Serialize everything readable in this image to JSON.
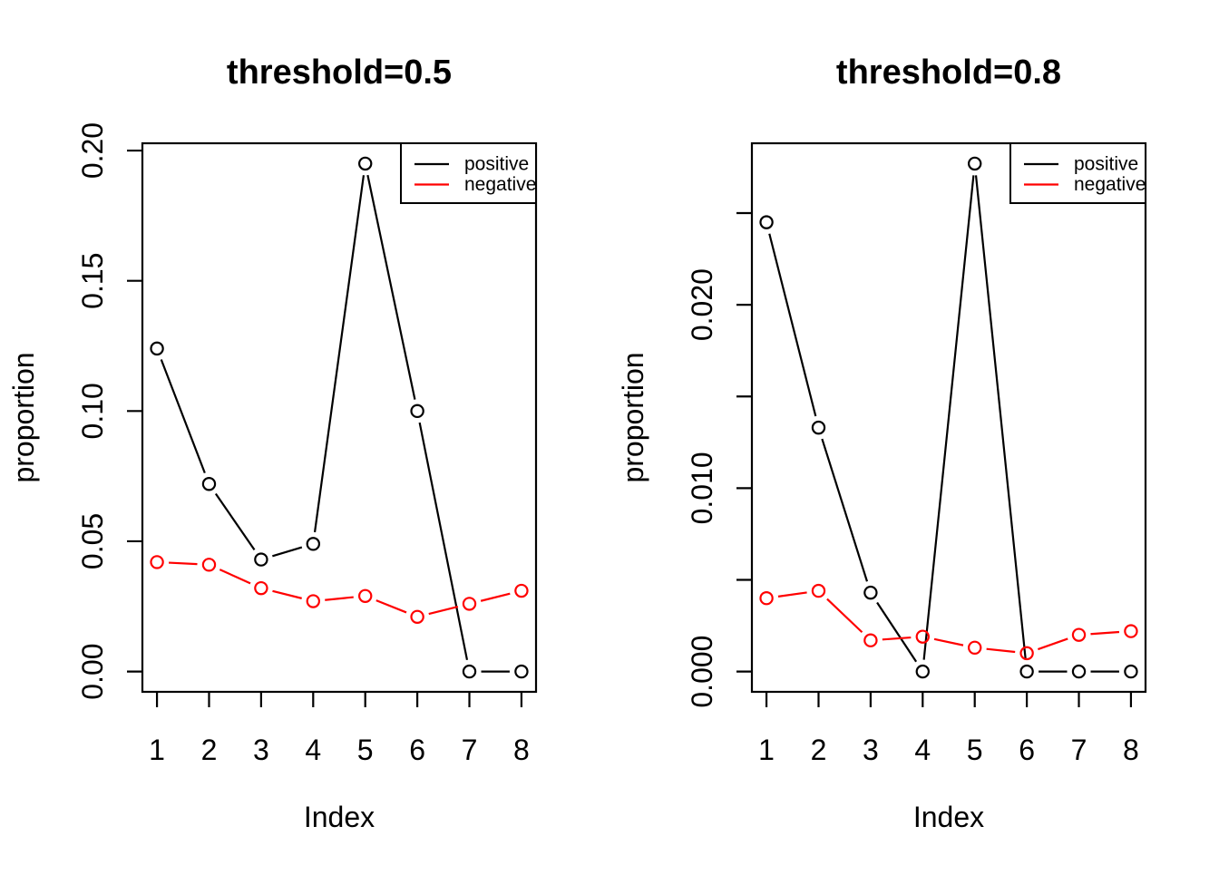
{
  "figure": {
    "background": "#FFFFFF",
    "description": "two-panel line chart"
  },
  "chart_data": {
    "type": "line",
    "marker": "open-circle",
    "line_style": "points-with-gapped-segments",
    "panels": [
      {
        "title": "threshold=0.5",
        "xlabel": "Index",
        "ylabel": "proportion",
        "x": [
          1,
          2,
          3,
          4,
          5,
          6,
          7,
          8
        ],
        "xlim": [
          1,
          8
        ],
        "ylim": [
          0,
          0.195
        ],
        "xtick_labels": [
          "1",
          "2",
          "3",
          "4",
          "5",
          "6",
          "7",
          "8"
        ],
        "yticks": [
          {
            "v": 0.0,
            "label": "0.00"
          },
          {
            "v": 0.05,
            "label": "0.05"
          },
          {
            "v": 0.1,
            "label": "0.10"
          },
          {
            "v": 0.15,
            "label": "0.15"
          },
          {
            "v": 0.2,
            "label": "0.20"
          }
        ],
        "series": [
          {
            "name": "positive",
            "color": "#000000",
            "values": [
              0.124,
              0.072,
              0.043,
              0.049,
              0.195,
              0.1,
              0.0,
              0.0
            ]
          },
          {
            "name": "negative",
            "color": "#FF0000",
            "values": [
              0.042,
              0.041,
              0.032,
              0.027,
              0.029,
              0.021,
              0.026,
              0.031
            ]
          }
        ],
        "legend": {
          "position": "topright",
          "entries": [
            "positive",
            "negative"
          ]
        }
      },
      {
        "title": "threshold=0.8",
        "xlabel": "Index",
        "ylabel": "proportion",
        "x": [
          1,
          2,
          3,
          4,
          5,
          6,
          7,
          8
        ],
        "xlim": [
          1,
          8
        ],
        "ylim": [
          0,
          0.0277
        ],
        "xtick_labels": [
          "1",
          "2",
          "3",
          "4",
          "5",
          "6",
          "7",
          "8"
        ],
        "yticks": [
          {
            "v": 0.0,
            "label": "0.000"
          },
          {
            "v": 0.005,
            "label": ""
          },
          {
            "v": 0.01,
            "label": "0.010"
          },
          {
            "v": 0.015,
            "label": ""
          },
          {
            "v": 0.02,
            "label": "0.020"
          },
          {
            "v": 0.025,
            "label": ""
          }
        ],
        "series": [
          {
            "name": "positive",
            "color": "#000000",
            "values": [
              0.0245,
              0.0133,
              0.0043,
              0.0,
              0.0277,
              0.0,
              0.0,
              0.0
            ]
          },
          {
            "name": "negative",
            "color": "#FF0000",
            "values": [
              0.004,
              0.0044,
              0.0017,
              0.0019,
              0.0013,
              0.001,
              0.002,
              0.0022
            ]
          }
        ],
        "legend": {
          "position": "topright",
          "entries": [
            "positive",
            "negative"
          ]
        }
      }
    ]
  }
}
